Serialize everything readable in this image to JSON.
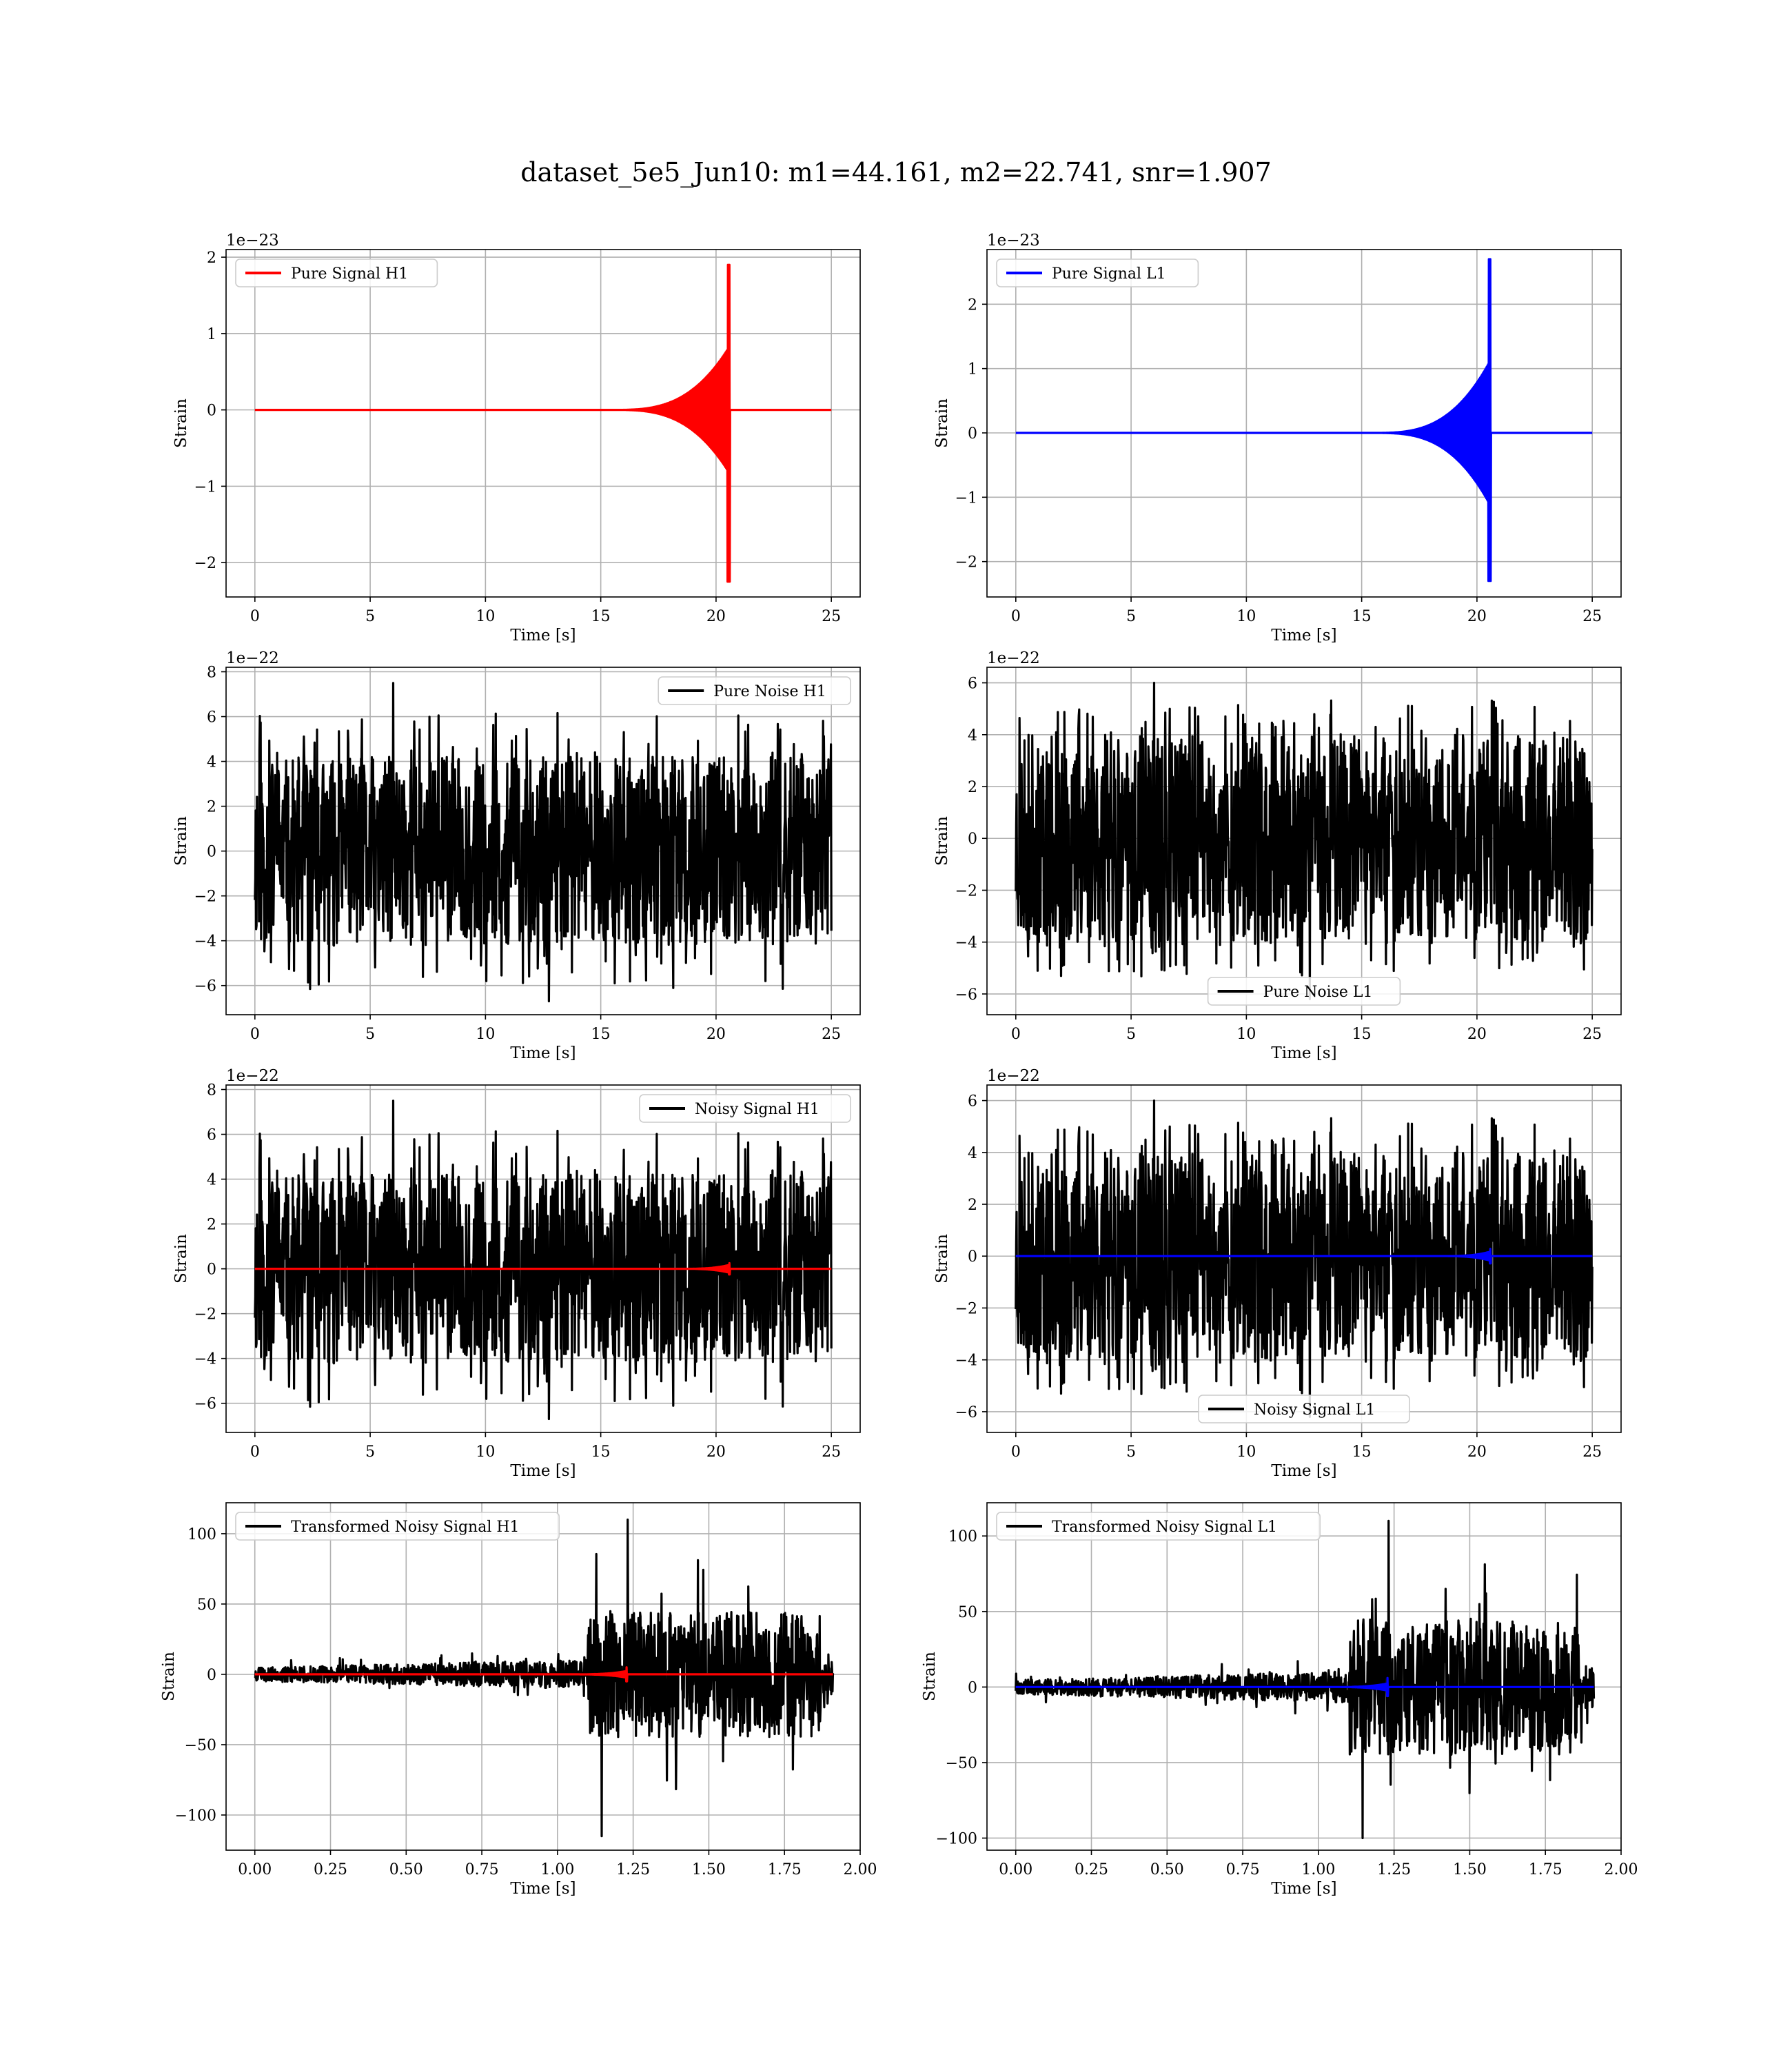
{
  "title": "dataset_5e5_Jun10: m1=44.161, m2=22.741, snr=1.907",
  "chart_data": [
    {
      "type": "line",
      "ylabel": "Strain",
      "xlabel": "Time [s]",
      "offset_text": "1e−23",
      "xlim": [
        -1.25,
        26.25
      ],
      "ylim": [
        -2.45,
        2.1
      ],
      "xticks": [
        0,
        5,
        10,
        15,
        20,
        25
      ],
      "xtick_labels": [
        "0",
        "5",
        "10",
        "15",
        "20",
        "25"
      ],
      "yticks": [
        -2,
        -1,
        0,
        1,
        2
      ],
      "ytick_labels": [
        "−2",
        "−1",
        "0",
        "1",
        "2"
      ],
      "grid": true,
      "legend_loc": "upper left",
      "series": [
        {
          "name": "Pure Signal H1",
          "color": "#ff0000",
          "kind": "chirp",
          "start": 0,
          "end": 25,
          "merger": 20.6,
          "onset": 15.5,
          "env_mid": 0.7,
          "peak_pos": 1.9,
          "peak_neg": -2.25
        }
      ]
    },
    {
      "type": "line",
      "ylabel": "Strain",
      "xlabel": "Time [s]",
      "offset_text": "1e−23",
      "xlim": [
        -1.25,
        26.25
      ],
      "ylim": [
        -2.55,
        2.85
      ],
      "xticks": [
        0,
        5,
        10,
        15,
        20,
        25
      ],
      "xtick_labels": [
        "0",
        "5",
        "10",
        "15",
        "20",
        "25"
      ],
      "yticks": [
        -2,
        -1,
        0,
        1,
        2
      ],
      "ytick_labels": [
        "−2",
        "−1",
        "0",
        "1",
        "2"
      ],
      "grid": true,
      "legend_loc": "upper left",
      "series": [
        {
          "name": "Pure Signal L1",
          "color": "#0000ff",
          "kind": "chirp",
          "start": 0,
          "end": 25,
          "merger": 20.6,
          "onset": 15.5,
          "env_mid": 0.95,
          "peak_pos": 2.7,
          "peak_neg": -2.3
        }
      ]
    },
    {
      "type": "line",
      "ylabel": "Strain",
      "xlabel": "Time [s]",
      "offset_text": "1e−22",
      "xlim": [
        -1.25,
        26.25
      ],
      "ylim": [
        -7.3,
        8.2
      ],
      "xticks": [
        0,
        5,
        10,
        15,
        20,
        25
      ],
      "xtick_labels": [
        "0",
        "5",
        "10",
        "15",
        "20",
        "25"
      ],
      "yticks": [
        -6,
        -4,
        -2,
        0,
        2,
        4,
        6,
        8
      ],
      "ytick_labels": [
        "−6",
        "−4",
        "−2",
        "0",
        "2",
        "4",
        "6",
        "8"
      ],
      "grid": true,
      "legend_loc": "upper right",
      "series": [
        {
          "name": "Pure Noise H1",
          "color": "#000000",
          "kind": "noise",
          "start": 0,
          "end": 25,
          "max": 7.5,
          "min": -6.7,
          "band": 4.2,
          "seed": 11
        }
      ]
    },
    {
      "type": "line",
      "ylabel": "Strain",
      "xlabel": "Time [s]",
      "offset_text": "1e−22",
      "xlim": [
        -1.25,
        26.25
      ],
      "ylim": [
        -6.8,
        6.6
      ],
      "xticks": [
        0,
        5,
        10,
        15,
        20,
        25
      ],
      "xtick_labels": [
        "0",
        "5",
        "10",
        "15",
        "20",
        "25"
      ],
      "yticks": [
        -6,
        -4,
        -2,
        0,
        2,
        4,
        6
      ],
      "ytick_labels": [
        "−6",
        "−4",
        "−2",
        "0",
        "2",
        "4",
        "6"
      ],
      "grid": true,
      "legend_loc": "lower center",
      "series": [
        {
          "name": "Pure Noise L1",
          "color": "#000000",
          "kind": "noise",
          "start": 0,
          "end": 25,
          "max": 6.0,
          "min": -6.2,
          "band": 4.0,
          "seed": 23
        }
      ]
    },
    {
      "type": "line",
      "ylabel": "Strain",
      "xlabel": "Time [s]",
      "offset_text": "1e−22",
      "xlim": [
        -1.25,
        26.25
      ],
      "ylim": [
        -7.3,
        8.2
      ],
      "xticks": [
        0,
        5,
        10,
        15,
        20,
        25
      ],
      "xtick_labels": [
        "0",
        "5",
        "10",
        "15",
        "20",
        "25"
      ],
      "yticks": [
        -6,
        -4,
        -2,
        0,
        2,
        4,
        6,
        8
      ],
      "ytick_labels": [
        "−6",
        "−4",
        "−2",
        "0",
        "2",
        "4",
        "6",
        "8"
      ],
      "grid": true,
      "legend_loc": "upper right",
      "series": [
        {
          "name": "Noisy Signal H1",
          "color": "#000000",
          "kind": "noise",
          "start": 0,
          "end": 25,
          "max": 7.5,
          "min": -6.7,
          "band": 4.2,
          "seed": 11
        },
        {
          "name": "",
          "color": "#ff0000",
          "kind": "chirp",
          "start": 0,
          "end": 25,
          "merger": 20.6,
          "onset": 18.5,
          "env_mid": 0.15,
          "peak_pos": 0.25,
          "peak_neg": -0.25
        }
      ]
    },
    {
      "type": "line",
      "ylabel": "Strain",
      "xlabel": "Time [s]",
      "offset_text": "1e−22",
      "xlim": [
        -1.25,
        26.25
      ],
      "ylim": [
        -6.8,
        6.6
      ],
      "xticks": [
        0,
        5,
        10,
        15,
        20,
        25
      ],
      "xtick_labels": [
        "0",
        "5",
        "10",
        "15",
        "20",
        "25"
      ],
      "yticks": [
        -6,
        -4,
        -2,
        0,
        2,
        4,
        6
      ],
      "ytick_labels": [
        "−6",
        "−4",
        "−2",
        "0",
        "2",
        "4",
        "6"
      ],
      "grid": true,
      "legend_loc": "lower center",
      "series": [
        {
          "name": "Noisy Signal L1",
          "color": "#000000",
          "kind": "noise",
          "start": 0,
          "end": 25,
          "max": 6.0,
          "min": -6.2,
          "band": 4.0,
          "seed": 23
        },
        {
          "name": "",
          "color": "#0000ff",
          "kind": "chirp",
          "start": 0,
          "end": 25,
          "merger": 20.6,
          "onset": 18.5,
          "env_mid": 0.15,
          "peak_pos": 0.28,
          "peak_neg": -0.28
        }
      ]
    },
    {
      "type": "line",
      "ylabel": "Strain",
      "xlabel": "Time [s]",
      "offset_text": "",
      "xlim": [
        -0.095,
        2.0
      ],
      "ylim": [
        -125,
        122
      ],
      "xticks": [
        0,
        0.25,
        0.5,
        0.75,
        1.0,
        1.25,
        1.5,
        1.75,
        2.0
      ],
      "xtick_labels": [
        "0.00",
        "0.25",
        "0.50",
        "0.75",
        "1.00",
        "1.25",
        "1.50",
        "1.75",
        "2.00"
      ],
      "yticks": [
        -100,
        -50,
        0,
        50,
        100
      ],
      "ytick_labels": [
        "−100",
        "−50",
        "0",
        "50",
        "100"
      ],
      "grid": true,
      "legend_loc": "upper left",
      "series": [
        {
          "name": "Transformed Noisy Signal H1",
          "color": "#000000",
          "kind": "burst",
          "start": 0,
          "end": 1.91,
          "switch": 1.1,
          "burst_end": 1.87,
          "low_band": 8,
          "high_band": 45,
          "max": 110,
          "min": -115,
          "seed": 5
        },
        {
          "name": "",
          "color": "#ff0000",
          "kind": "chirp",
          "start": 0,
          "end": 1.91,
          "merger": 1.23,
          "onset": 1.05,
          "env_mid": 2,
          "peak_pos": 5,
          "peak_neg": -5
        }
      ]
    },
    {
      "type": "line",
      "ylabel": "Strain",
      "xlabel": "Time [s]",
      "offset_text": "",
      "xlim": [
        -0.095,
        2.0
      ],
      "ylim": [
        -108,
        122
      ],
      "xticks": [
        0,
        0.25,
        0.5,
        0.75,
        1.0,
        1.25,
        1.5,
        1.75,
        2.0
      ],
      "xtick_labels": [
        "0.00",
        "0.25",
        "0.50",
        "0.75",
        "1.00",
        "1.25",
        "1.50",
        "1.75",
        "2.00"
      ],
      "yticks": [
        -100,
        -50,
        0,
        50,
        100
      ],
      "ytick_labels": [
        "−100",
        "−50",
        "0",
        "50",
        "100"
      ],
      "grid": true,
      "legend_loc": "upper left",
      "series": [
        {
          "name": "Transformed Noisy Signal L1",
          "color": "#000000",
          "kind": "burst",
          "start": 0,
          "end": 1.91,
          "switch": 1.1,
          "burst_end": 1.87,
          "low_band": 8,
          "high_band": 45,
          "max": 110,
          "min": -100,
          "seed": 9
        },
        {
          "name": "",
          "color": "#0000ff",
          "kind": "chirp",
          "start": 0,
          "end": 1.91,
          "merger": 1.23,
          "onset": 1.05,
          "env_mid": 2,
          "peak_pos": 6,
          "peak_neg": -6
        }
      ]
    }
  ]
}
